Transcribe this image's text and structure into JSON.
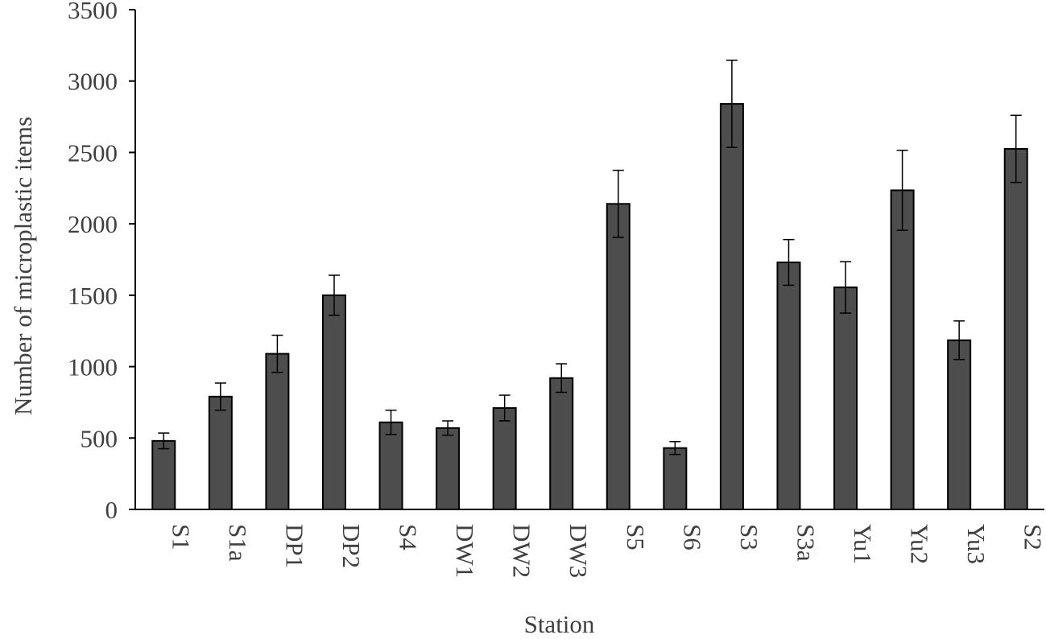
{
  "chart_data": {
    "type": "bar",
    "title": "",
    "xlabel": "Station",
    "ylabel": "Number of microplastic items",
    "ylim": [
      0,
      3500
    ],
    "yticks": [
      0,
      500,
      1000,
      1500,
      2000,
      2500,
      3000,
      3500
    ],
    "grid": false,
    "legend": "none",
    "bar_color": "#4d4d4d",
    "categories": [
      "S1",
      "S1a",
      "DP1",
      "DP2",
      "S4",
      "DW1",
      "DW2",
      "DW3",
      "S5",
      "S6",
      "S3",
      "S3a",
      "Yu1",
      "Yu2",
      "Yu3",
      "S2"
    ],
    "series": [
      {
        "values": [
          480,
          790,
          1090,
          1500,
          610,
          570,
          710,
          920,
          2140,
          430,
          2840,
          1730,
          1555,
          2235,
          1185,
          2525
        ],
        "error": [
          55,
          95,
          130,
          140,
          85,
          50,
          90,
          100,
          235,
          45,
          305,
          160,
          180,
          280,
          135,
          235
        ]
      }
    ]
  }
}
